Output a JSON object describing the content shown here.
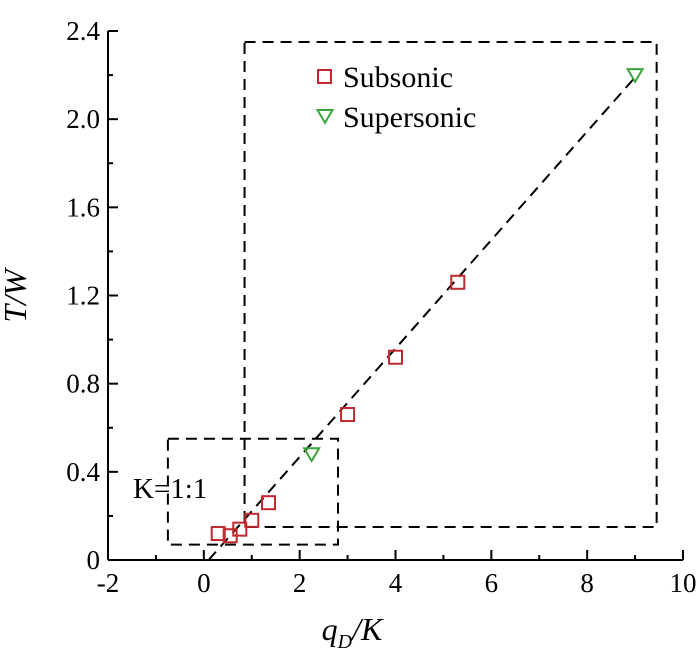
{
  "chart_data": {
    "type": "scatter",
    "xlabel": {
      "main": "q",
      "sub": "D",
      "rest": "/K"
    },
    "ylabel": "T/W",
    "xlim": [
      -2,
      10
    ],
    "ylim": [
      0,
      2.4
    ],
    "xticks": [
      -2,
      0,
      2,
      4,
      6,
      8,
      10
    ],
    "yticks": [
      0,
      0.4,
      0.8,
      1.2,
      1.6,
      2.0,
      2.4
    ],
    "xtick_labels": [
      "-2",
      "0",
      "2",
      "4",
      "6",
      "8",
      "10"
    ],
    "ytick_labels": [
      "0",
      "0.4",
      "0.8",
      "1.2",
      "1.6",
      "2.0",
      "2.4"
    ],
    "grid": false,
    "legend_position": "top-center",
    "series": [
      {
        "name": "Subsonic",
        "marker": "square",
        "color": "#c0282d",
        "points": [
          {
            "x": 0.3,
            "y": 0.12
          },
          {
            "x": 0.55,
            "y": 0.11
          },
          {
            "x": 0.75,
            "y": 0.14
          },
          {
            "x": 1.0,
            "y": 0.18
          },
          {
            "x": 1.35,
            "y": 0.26
          },
          {
            "x": 3.0,
            "y": 0.66
          },
          {
            "x": 4.0,
            "y": 0.92
          },
          {
            "x": 5.3,
            "y": 1.26
          }
        ]
      },
      {
        "name": "Supersonic",
        "marker": "triangle-down",
        "color": "#3aa53a",
        "points": [
          {
            "x": 2.25,
            "y": 0.48
          },
          {
            "x": 9.0,
            "y": 2.2
          }
        ]
      }
    ],
    "fit_line": {
      "style": "dashed",
      "color": "#000000",
      "x": [
        0.1,
        9.0
      ],
      "y": [
        0.0,
        2.19
      ]
    },
    "zoom_boxes": [
      {
        "style": "dashed",
        "x": [
          -0.75,
          2.8
        ],
        "y": [
          0.07,
          0.55
        ]
      },
      {
        "style": "dashed",
        "x": [
          0.85,
          9.45
        ],
        "y": [
          0.15,
          2.35
        ]
      }
    ],
    "annotation": "K=1:1"
  }
}
